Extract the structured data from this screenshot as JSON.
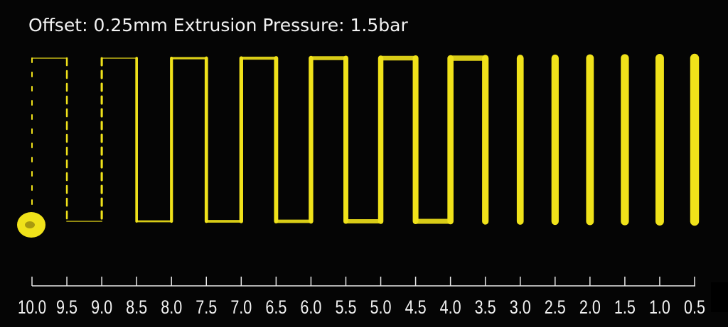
{
  "title": "Offset: 0.25mm Extrusion Pressure: 1.5bar",
  "scale": {
    "labels": [
      "10.0",
      "9.5",
      "9.0",
      "8.5",
      "8.0",
      "7.5",
      "7.0",
      "6.5",
      "6.0",
      "5.5",
      "5.0",
      "4.5",
      "4.0",
      "3.5",
      "3.0",
      "2.5",
      "2.0",
      "1.5",
      "1.0",
      "0.5"
    ]
  }
}
